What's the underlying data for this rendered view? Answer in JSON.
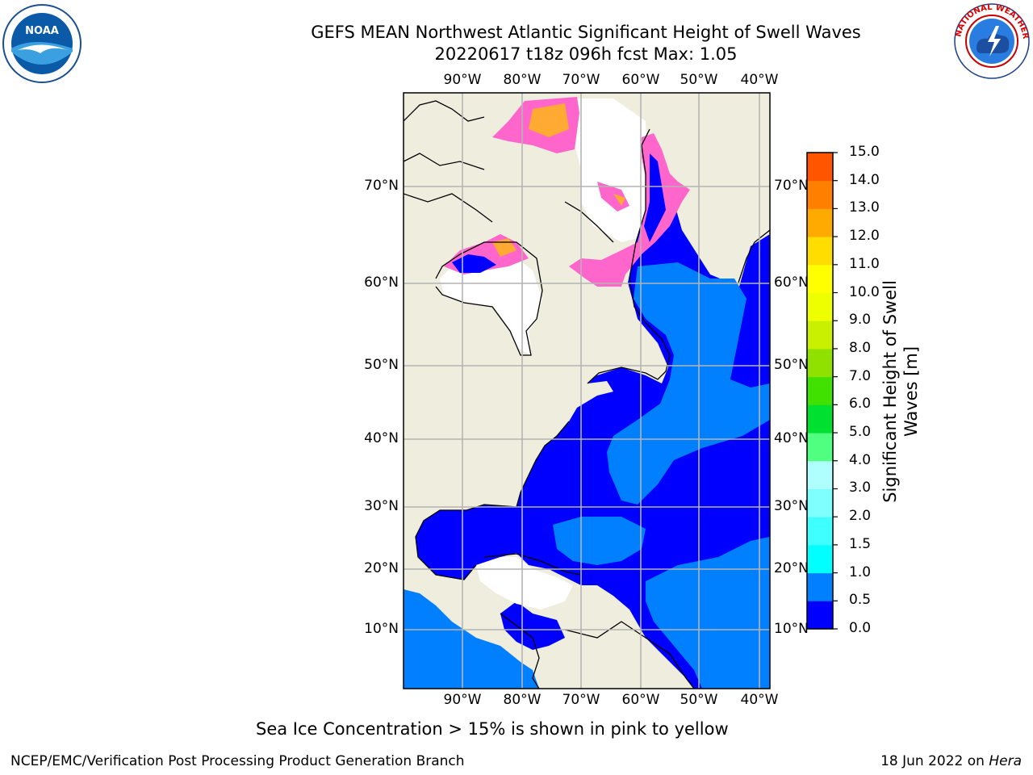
{
  "title_line1": "GEFS MEAN Northwest Atlantic Significant Height of Swell Waves",
  "title_line2": "20220617 t18z 096h fcst   Max: 1.05",
  "logos": {
    "left": "NOAA",
    "right": "NATIONAL WEATHER SERVICE"
  },
  "map": {
    "lon_labels": [
      "90°W",
      "80°W",
      "70°W",
      "60°W",
      "50°W",
      "40°W"
    ],
    "lat_labels": [
      "70°N",
      "60°N",
      "50°N",
      "40°N",
      "30°N",
      "20°N",
      "10°N"
    ],
    "colors": {
      "land": "#efedde",
      "ice_free_white": "#ffffff",
      "swell_0": "#0000ff",
      "swell_05": "#0080ff",
      "grid": "#b4b4b4",
      "sea_ice": "#ff66cc"
    }
  },
  "colorbar": {
    "title_line1": "Significant Height of Swell",
    "title_line2": "Waves [m]",
    "ticks": [
      "0.0",
      "0.5",
      "1.0",
      "1.5",
      "2.0",
      "3.0",
      "4.0",
      "5.0",
      "6.0",
      "7.0",
      "8.0",
      "9.0",
      "10.0",
      "11.0",
      "12.0",
      "13.0",
      "14.0",
      "15.0"
    ],
    "colors": [
      "#0000ff",
      "#0080ff",
      "#00ffff",
      "#40ffff",
      "#80ffff",
      "#b0ffff",
      "#50ff80",
      "#00e030",
      "#40e000",
      "#90e000",
      "#c8f000",
      "#eeff00",
      "#ffff00",
      "#ffdd00",
      "#ffaa00",
      "#ff8000",
      "#ff5500",
      "#ff2a00",
      "#ff0000"
    ]
  },
  "note": "Sea Ice Concentration > 15% is shown in pink to yellow",
  "footer_left": "NCEP/EMC/Verification Post Processing Product Generation Branch",
  "footer_right_prefix": "18 Jun 2022 on",
  "footer_right_host": "Hera"
}
